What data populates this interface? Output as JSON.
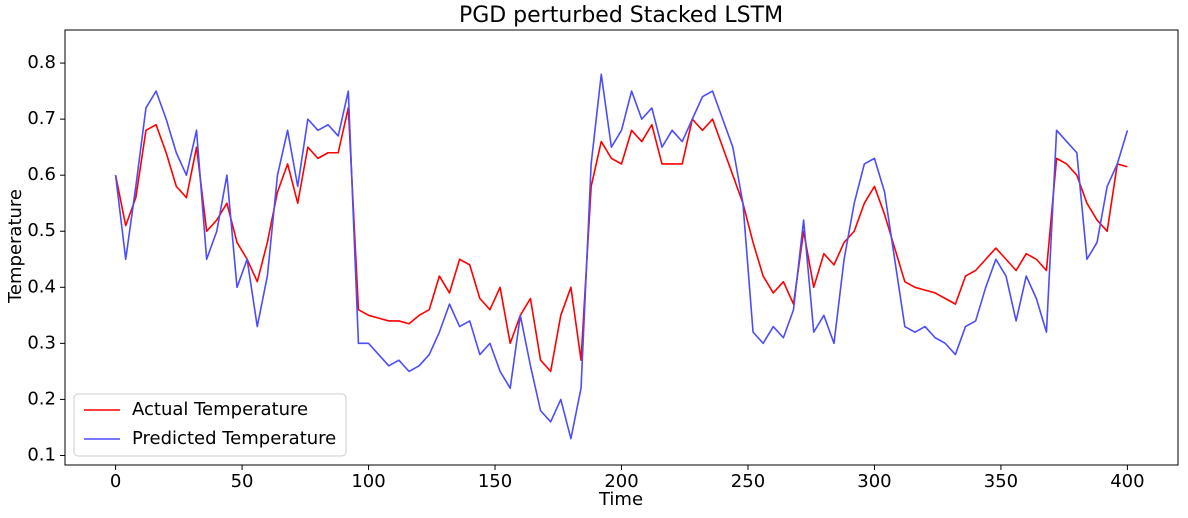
{
  "chart_data": {
    "type": "line",
    "title": "PGD perturbed Stacked LSTM",
    "x_label": "Time",
    "y_label": "Temperature",
    "x": [
      0,
      4,
      8,
      12,
      16,
      20,
      24,
      28,
      32,
      36,
      40,
      44,
      48,
      52,
      56,
      60,
      64,
      68,
      72,
      76,
      80,
      84,
      88,
      92,
      96,
      100,
      104,
      108,
      112,
      116,
      120,
      124,
      128,
      132,
      136,
      140,
      144,
      148,
      152,
      156,
      160,
      164,
      168,
      172,
      176,
      180,
      184,
      188,
      192,
      196,
      200,
      204,
      208,
      212,
      216,
      220,
      224,
      228,
      232,
      236,
      240,
      244,
      248,
      252,
      256,
      260,
      264,
      268,
      272,
      276,
      280,
      284,
      288,
      292,
      296,
      300,
      304,
      308,
      312,
      316,
      320,
      324,
      328,
      332,
      336,
      340,
      344,
      348,
      352,
      356,
      360,
      364,
      368,
      372,
      376,
      380,
      384,
      388,
      392,
      396,
      400
    ],
    "series": [
      {
        "name": "Actual Temperature",
        "color": "#ff0000",
        "values": [
          0.6,
          0.51,
          0.56,
          0.68,
          0.69,
          0.64,
          0.58,
          0.56,
          0.65,
          0.5,
          0.52,
          0.55,
          0.48,
          0.45,
          0.41,
          0.48,
          0.57,
          0.62,
          0.55,
          0.65,
          0.63,
          0.64,
          0.64,
          0.72,
          0.36,
          0.35,
          0.345,
          0.34,
          0.34,
          0.335,
          0.35,
          0.36,
          0.42,
          0.39,
          0.45,
          0.44,
          0.38,
          0.36,
          0.4,
          0.3,
          0.35,
          0.38,
          0.27,
          0.25,
          0.35,
          0.4,
          0.27,
          0.58,
          0.66,
          0.63,
          0.62,
          0.68,
          0.66,
          0.69,
          0.62,
          0.62,
          0.62,
          0.7,
          0.68,
          0.7,
          0.65,
          0.6,
          0.55,
          0.48,
          0.42,
          0.39,
          0.41,
          0.37,
          0.5,
          0.4,
          0.46,
          0.44,
          0.48,
          0.5,
          0.55,
          0.58,
          0.53,
          0.47,
          0.41,
          0.4,
          0.395,
          0.39,
          0.38,
          0.37,
          0.42,
          0.43,
          0.45,
          0.47,
          0.45,
          0.43,
          0.46,
          0.45,
          0.43,
          0.63,
          0.62,
          0.6,
          0.55,
          0.52,
          0.5,
          0.62,
          0.615
        ]
      },
      {
        "name": "Predicted Temperature",
        "color": "#4c4cff",
        "values": [
          0.6,
          0.45,
          0.58,
          0.72,
          0.75,
          0.7,
          0.64,
          0.6,
          0.68,
          0.45,
          0.5,
          0.6,
          0.4,
          0.45,
          0.33,
          0.42,
          0.6,
          0.68,
          0.58,
          0.7,
          0.68,
          0.69,
          0.67,
          0.75,
          0.3,
          0.3,
          0.28,
          0.26,
          0.27,
          0.25,
          0.26,
          0.28,
          0.32,
          0.37,
          0.33,
          0.34,
          0.28,
          0.3,
          0.25,
          0.22,
          0.35,
          0.26,
          0.18,
          0.16,
          0.2,
          0.13,
          0.22,
          0.62,
          0.78,
          0.65,
          0.68,
          0.75,
          0.7,
          0.72,
          0.65,
          0.68,
          0.66,
          0.7,
          0.74,
          0.75,
          0.7,
          0.65,
          0.55,
          0.32,
          0.3,
          0.33,
          0.31,
          0.36,
          0.52,
          0.32,
          0.35,
          0.3,
          0.45,
          0.55,
          0.62,
          0.63,
          0.57,
          0.45,
          0.33,
          0.32,
          0.33,
          0.31,
          0.3,
          0.28,
          0.33,
          0.34,
          0.4,
          0.45,
          0.42,
          0.34,
          0.42,
          0.38,
          0.32,
          0.68,
          0.66,
          0.64,
          0.45,
          0.48,
          0.58,
          0.62,
          0.68
        ]
      }
    ],
    "xlim": [
      -20,
      420
    ],
    "ylim": [
      0.083,
      0.859
    ],
    "xticks": [
      0,
      50,
      100,
      150,
      200,
      250,
      300,
      350,
      400
    ],
    "yticks": [
      0.1,
      0.2,
      0.3,
      0.4,
      0.5,
      0.6,
      0.7,
      0.8
    ],
    "legend": "lower left",
    "grid": false
  }
}
